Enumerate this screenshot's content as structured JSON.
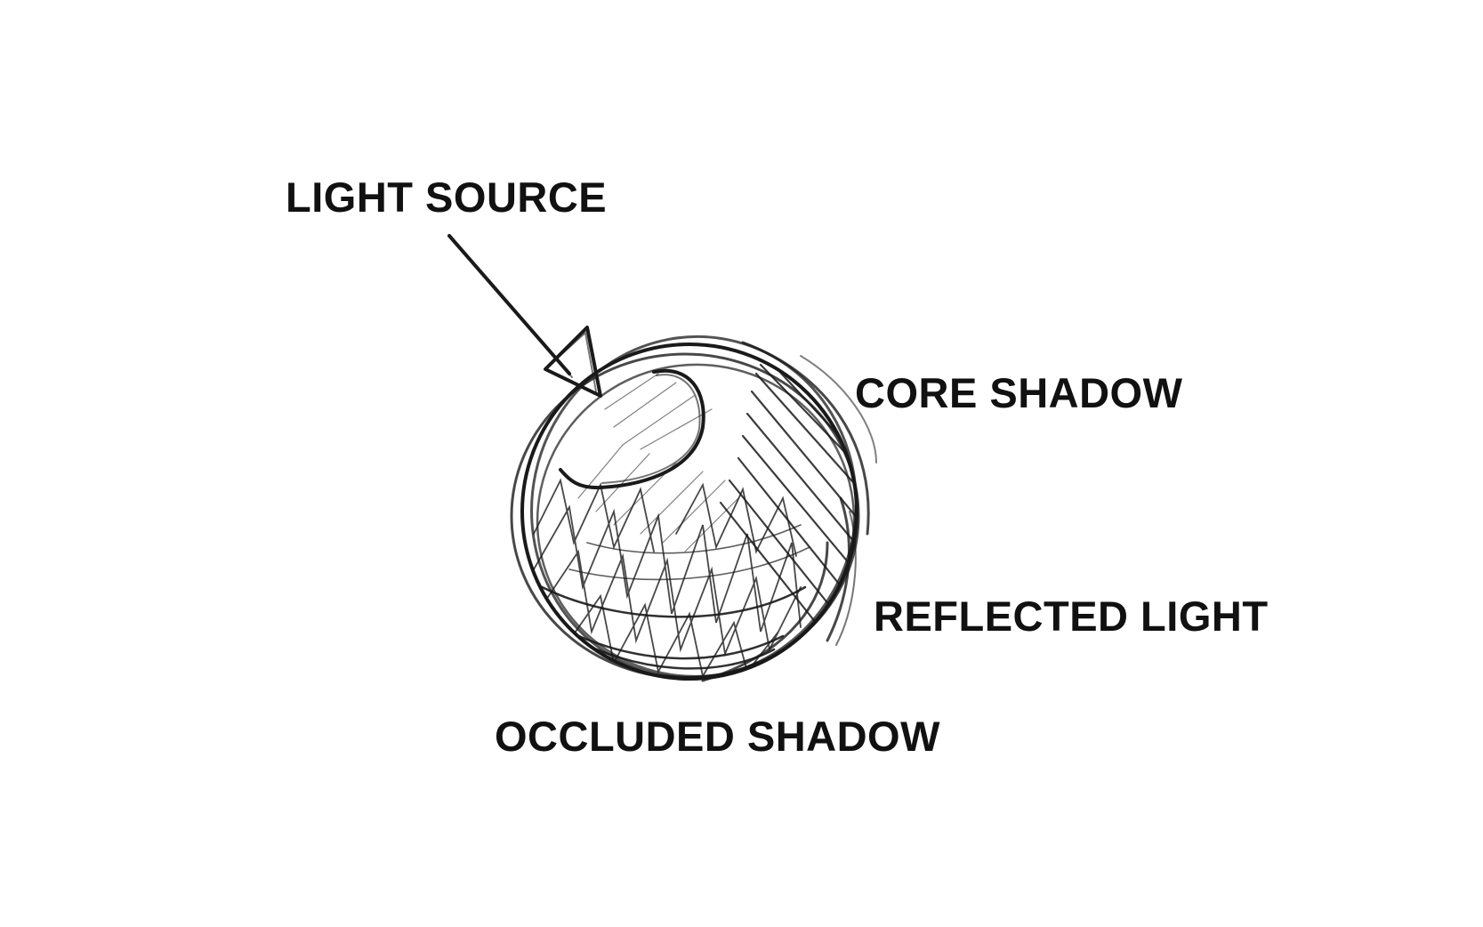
{
  "diagram": {
    "stroke_color": "#1a1a1a",
    "background_color": "#ffffff",
    "labels": {
      "light_source": "LIGHT SOURCE",
      "core_shadow": "CORE SHADOW",
      "reflected_light": "REFLECTED LIGHT",
      "occluded_shadow": "OCCLUDED SHADOW"
    }
  }
}
